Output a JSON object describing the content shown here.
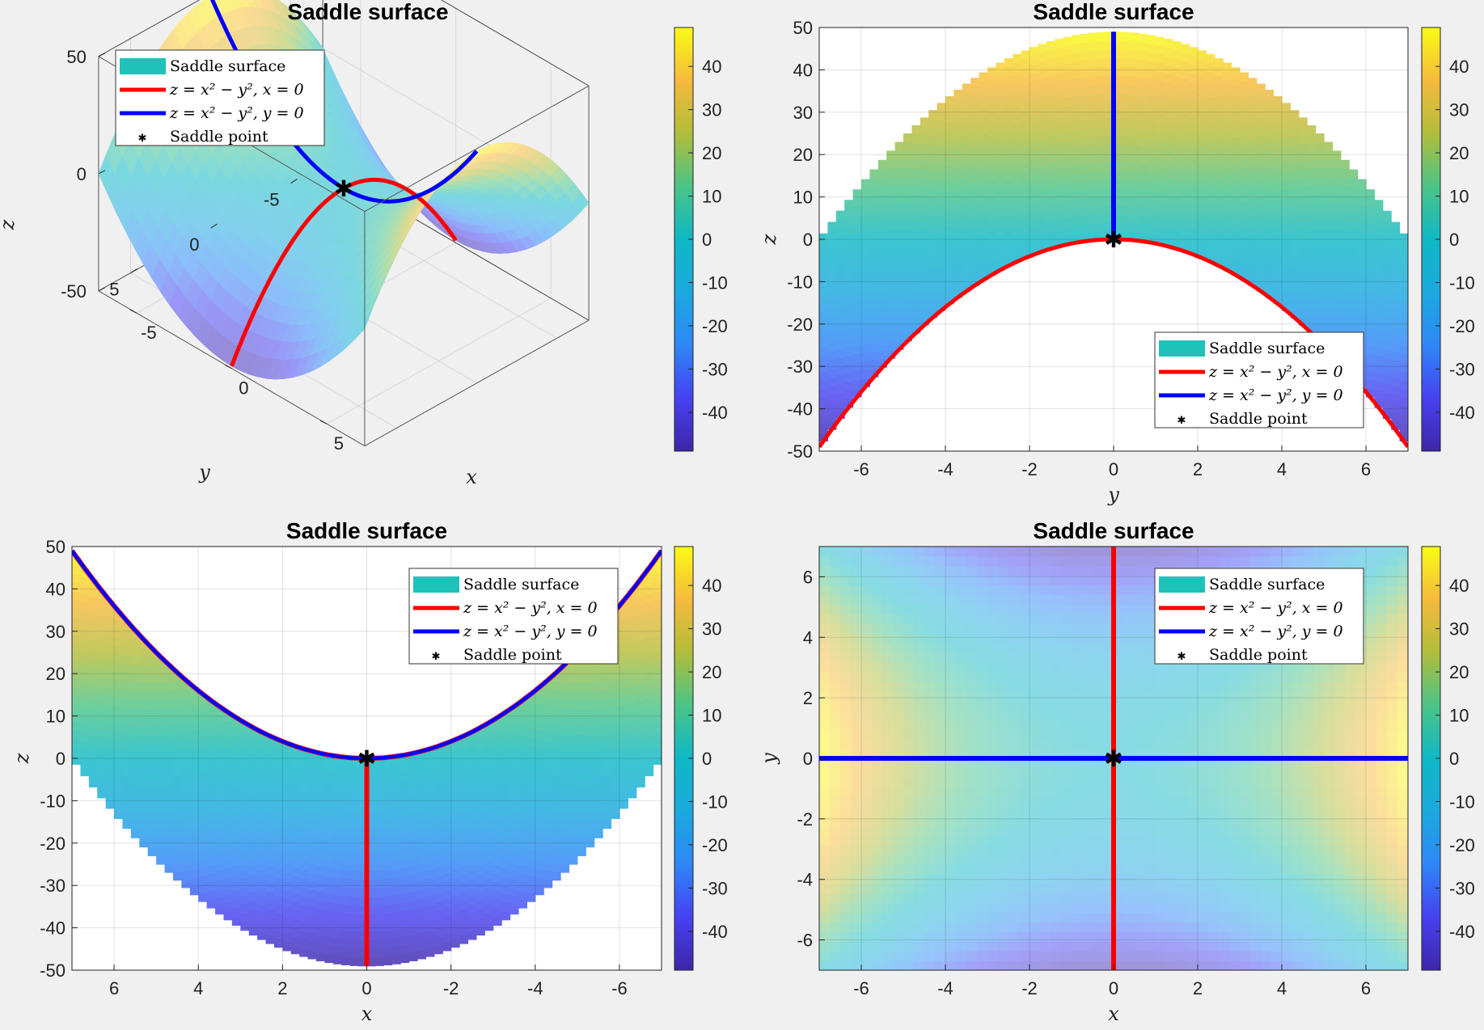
{
  "figure": {
    "background": "#f0f0f0"
  },
  "legend": {
    "items": [
      {
        "label": "Saddle surface",
        "color": "#1ec2b8",
        "kind": "patch"
      },
      {
        "label": "z = x² − y², x = 0",
        "color": "#ff0000",
        "kind": "line"
      },
      {
        "label": "z = x² − y², y = 0",
        "color": "#0000ff",
        "kind": "line"
      },
      {
        "label": "Saddle point",
        "color": "#000000",
        "kind": "marker"
      }
    ]
  },
  "colorbar": {
    "colormap": "parula",
    "ticks": [
      "40",
      "30",
      "20",
      "10",
      "0",
      "-10",
      "-20",
      "-30",
      "-40"
    ],
    "tick_values": [
      40,
      30,
      20,
      10,
      0,
      -10,
      -20,
      -30,
      -40
    ],
    "range": [
      -49,
      49
    ]
  },
  "chart_data": [
    {
      "type": "surface-3d",
      "title": "Saddle surface",
      "xlabel": "x",
      "ylabel": "y",
      "zlabel": "z",
      "x_ticks": [
        "-5",
        "0",
        "5"
      ],
      "y_ticks": [
        "5",
        "0",
        "-5"
      ],
      "z_ticks": [
        "50",
        "0",
        "-50"
      ],
      "function": "z = x^2 - y^2",
      "xlim": [
        -7,
        7
      ],
      "ylim": [
        -7,
        7
      ],
      "zlim": [
        -50,
        50
      ],
      "series": [
        {
          "name": "Saddle surface",
          "kind": "surface"
        },
        {
          "name": "z = x² − y², x = 0",
          "kind": "line",
          "x": [
            0,
            0,
            0,
            0,
            0
          ],
          "y": [
            -7,
            -3.5,
            0,
            3.5,
            7
          ],
          "z": [
            -49,
            -12.25,
            0,
            -12.25,
            -49
          ]
        },
        {
          "name": "z = x² − y², y = 0",
          "kind": "line",
          "x": [
            -7,
            -3.5,
            0,
            3.5,
            7
          ],
          "y": [
            0,
            0,
            0,
            0,
            0
          ],
          "z": [
            49,
            12.25,
            0,
            12.25,
            49
          ]
        },
        {
          "name": "Saddle point",
          "kind": "point",
          "x": [
            0
          ],
          "y": [
            0
          ],
          "z": [
            0
          ]
        }
      ],
      "legend_position": "top-left"
    },
    {
      "type": "surface-view-yz",
      "title": "Saddle surface",
      "xlabel": "y",
      "ylabel": "z",
      "x_ticks": [
        "-6",
        "-4",
        "-2",
        "0",
        "2",
        "4",
        "6"
      ],
      "y_ticks": [
        "50",
        "40",
        "30",
        "20",
        "10",
        "0",
        "-10",
        "-20",
        "-30",
        "-40",
        "-50"
      ],
      "xlim": [
        -7,
        7
      ],
      "ylim": [
        -50,
        50
      ],
      "grid": true,
      "legend_position": "bottom-right"
    },
    {
      "type": "surface-view-xz",
      "title": "Saddle surface",
      "xlabel": "x",
      "ylabel": "z",
      "x_ticks": [
        "6",
        "4",
        "2",
        "0",
        "-2",
        "-4",
        "-6"
      ],
      "y_ticks": [
        "50",
        "40",
        "30",
        "20",
        "10",
        "0",
        "-10",
        "-20",
        "-30",
        "-40",
        "-50"
      ],
      "xlim": [
        7,
        -7
      ],
      "ylim": [
        -50,
        50
      ],
      "grid": true,
      "legend_position": "top-right"
    },
    {
      "type": "heatmap",
      "title": "Saddle surface",
      "xlabel": "x",
      "ylabel": "y",
      "x_ticks": [
        "-6",
        "-4",
        "-2",
        "0",
        "2",
        "4",
        "6"
      ],
      "y_ticks": [
        "6",
        "4",
        "2",
        "0",
        "-2",
        "-4",
        "-6"
      ],
      "xlim": [
        -7,
        7
      ],
      "ylim": [
        -7,
        7
      ],
      "grid": true,
      "legend_position": "top-right"
    }
  ]
}
